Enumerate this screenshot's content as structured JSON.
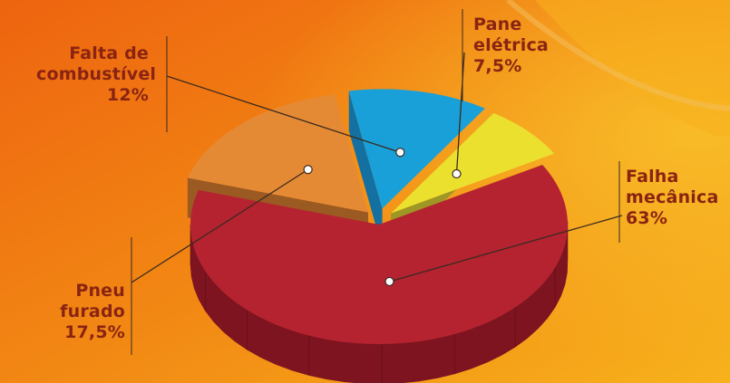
{
  "chart_data": {
    "type": "pie",
    "title": "",
    "start_angle_deg": -30,
    "slices": [
      {
        "name_lines": [
          "Falha",
          "mecânica"
        ],
        "value_label": "63%",
        "value": 63,
        "color": "#b52331",
        "side": "#7e1420",
        "explode": 0
      },
      {
        "name_lines": [
          "Pneu",
          "furado"
        ],
        "value_label": "17,5%",
        "value": 17.5,
        "color": "#e58a34",
        "side": "#9a5a22",
        "explode": 1
      },
      {
        "name_lines": [
          "Falta de",
          "combustível"
        ],
        "value_label": "12%",
        "value": 12,
        "color": "#1aa0d8",
        "side": "#1470a0",
        "explode": 1
      },
      {
        "name_lines": [
          "Pane",
          "elétrica"
        ],
        "value_label": "7,5%",
        "value": 7.5,
        "color": "#ece02e",
        "side": "#a09624",
        "explode": 1
      }
    ]
  },
  "colors": {
    "background_top": "#ef6a10",
    "background_bottom": "#f5a21a",
    "label_text": "#8a2412",
    "leader_line": "#3a2a20"
  }
}
